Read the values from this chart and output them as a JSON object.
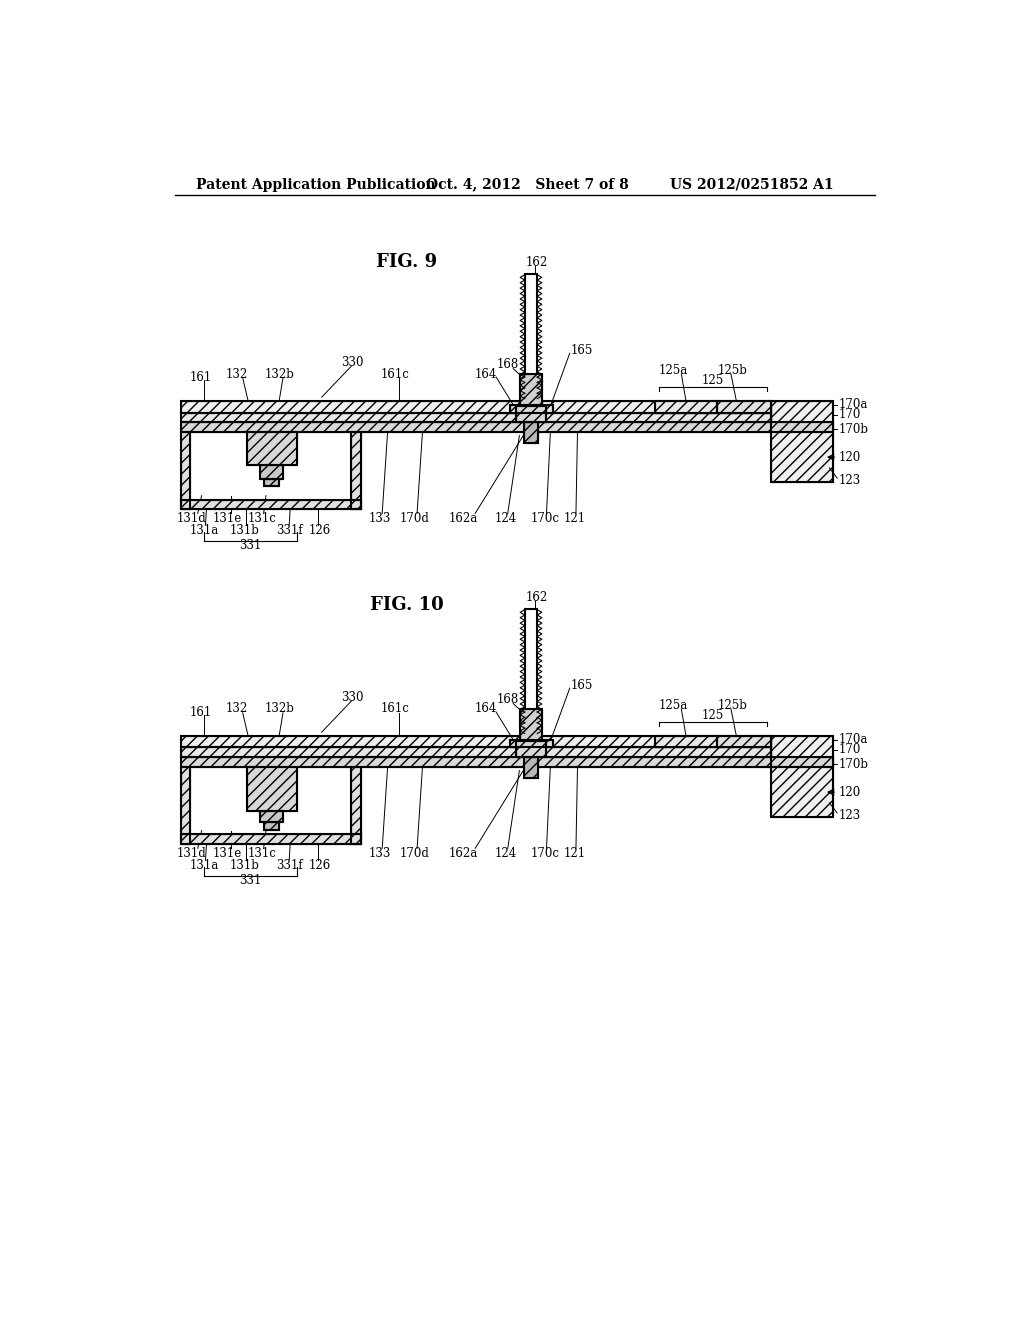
{
  "bg_color": "#ffffff",
  "text_color": "#000000",
  "header_left": "Patent Application Publication",
  "header_mid": "Oct. 4, 2012   Sheet 7 of 8",
  "header_right": "US 2012/0251852 A1",
  "fig9_title": "FIG. 9",
  "fig10_title": "FIG. 10",
  "line_color": "#000000"
}
